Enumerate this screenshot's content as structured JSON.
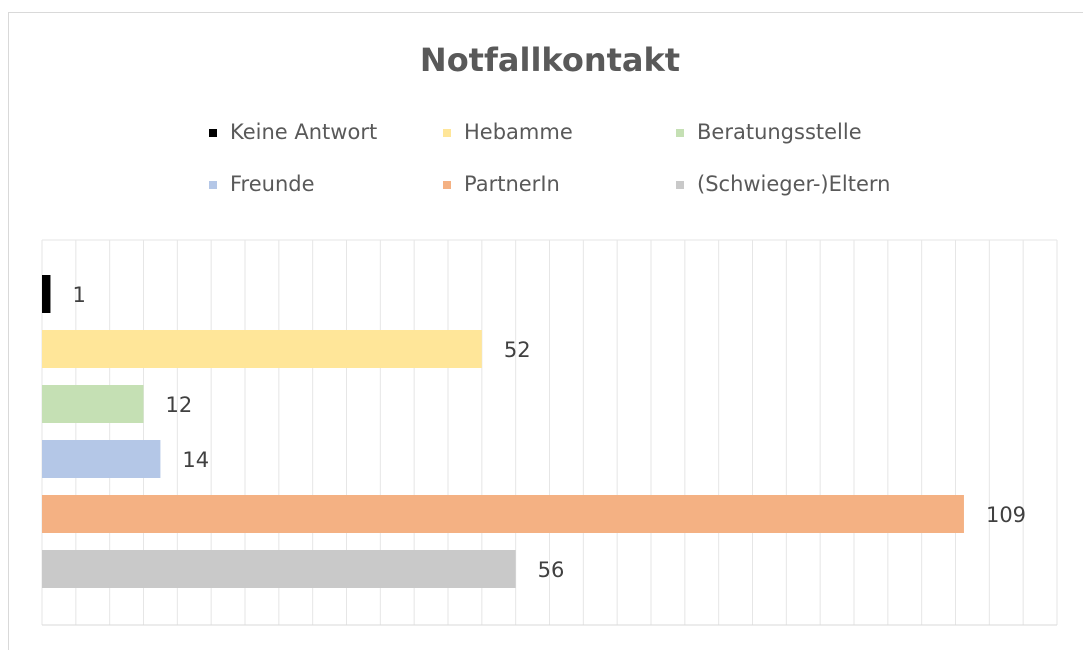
{
  "chart_data": {
    "type": "bar",
    "orientation": "horizontal",
    "title": "Notfallkontakt",
    "series": [
      {
        "name": "Keine Antwort",
        "color": "#000000",
        "values": [
          1
        ]
      },
      {
        "name": "Hebamme",
        "color": "#ffe699",
        "values": [
          52
        ]
      },
      {
        "name": "Beratungsstelle",
        "color": "#c5e0b4",
        "values": [
          12
        ]
      },
      {
        "name": "Freunde",
        "color": "#b4c7e7",
        "values": [
          14
        ]
      },
      {
        "name": "PartnerIn",
        "color": "#f4b183",
        "values": [
          109
        ]
      },
      {
        "name": "(Schwieger-)Eltern",
        "color": "#c9c9c9",
        "values": [
          56
        ]
      }
    ],
    "xlim": [
      0,
      120
    ],
    "xticks": [
      0,
      4,
      8,
      12,
      16,
      20,
      24,
      28,
      32,
      36,
      40,
      44,
      48,
      52,
      56,
      60,
      64,
      68,
      72,
      76,
      80,
      84,
      88,
      92,
      96,
      100,
      104,
      108,
      112,
      116,
      120
    ],
    "grid": true,
    "legend": "top"
  }
}
